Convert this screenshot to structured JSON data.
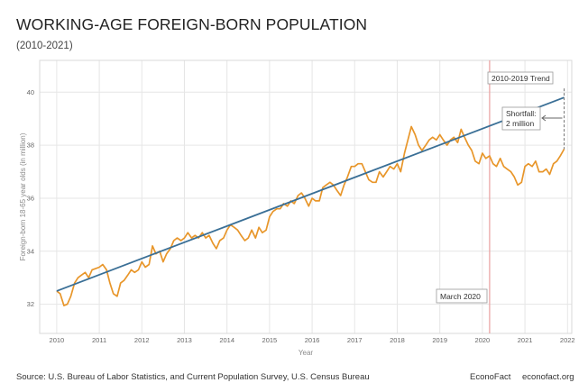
{
  "header": {
    "title": "WORKING-AGE FOREIGN-BORN POPULATION",
    "subtitle": "(2010-2021)"
  },
  "footer": {
    "source": "Source: U.S. Bureau of Labor Statistics, and Current Population Survey, U.S. Census Bureau",
    "brand": "EconoFact",
    "site": "econofact.org"
  },
  "colors": {
    "series": "#e8962a",
    "trend": "#3a6f96",
    "vline": "#e8a0a0",
    "grid": "#e6e6e6"
  },
  "chart_data": {
    "type": "line",
    "xlabel": "Year",
    "ylabel": "Foreign-born 18-65 year olds (in million)",
    "xlim": [
      2009.6,
      2022.1
    ],
    "ylim": [
      30.9,
      41.2
    ],
    "x_ticks": [
      "2010",
      "2011",
      "2012",
      "2013",
      "2014",
      "2015",
      "2016",
      "2017",
      "2018",
      "2019",
      "2020",
      "2021",
      "2022"
    ],
    "y_ticks": [
      "32",
      "34",
      "36",
      "38",
      "40"
    ],
    "grid": true,
    "series": [
      {
        "values": [
          [
            2010.0,
            32.5
          ],
          [
            2010.08,
            32.4
          ],
          [
            2010.17,
            31.95
          ],
          [
            2010.25,
            32.0
          ],
          [
            2010.33,
            32.3
          ],
          [
            2010.42,
            32.8
          ],
          [
            2010.5,
            33.0
          ],
          [
            2010.58,
            33.1
          ],
          [
            2010.67,
            33.2
          ],
          [
            2010.75,
            33.0
          ],
          [
            2010.83,
            33.3
          ],
          [
            2010.92,
            33.35
          ],
          [
            2011.0,
            33.4
          ],
          [
            2011.08,
            33.5
          ],
          [
            2011.17,
            33.3
          ],
          [
            2011.25,
            32.8
          ],
          [
            2011.33,
            32.4
          ],
          [
            2011.42,
            32.3
          ],
          [
            2011.5,
            32.8
          ],
          [
            2011.58,
            32.9
          ],
          [
            2011.67,
            33.1
          ],
          [
            2011.75,
            33.3
          ],
          [
            2011.83,
            33.2
          ],
          [
            2011.92,
            33.3
          ],
          [
            2012.0,
            33.6
          ],
          [
            2012.08,
            33.4
          ],
          [
            2012.17,
            33.5
          ],
          [
            2012.25,
            34.2
          ],
          [
            2012.33,
            33.9
          ],
          [
            2012.42,
            34.0
          ],
          [
            2012.5,
            33.6
          ],
          [
            2012.58,
            33.9
          ],
          [
            2012.67,
            34.1
          ],
          [
            2012.75,
            34.4
          ],
          [
            2012.83,
            34.5
          ],
          [
            2012.92,
            34.4
          ],
          [
            2013.0,
            34.5
          ],
          [
            2013.08,
            34.7
          ],
          [
            2013.17,
            34.5
          ],
          [
            2013.25,
            34.6
          ],
          [
            2013.33,
            34.5
          ],
          [
            2013.42,
            34.7
          ],
          [
            2013.5,
            34.5
          ],
          [
            2013.58,
            34.6
          ],
          [
            2013.67,
            34.3
          ],
          [
            2013.75,
            34.1
          ],
          [
            2013.83,
            34.4
          ],
          [
            2013.92,
            34.5
          ],
          [
            2014.0,
            34.8
          ],
          [
            2014.08,
            35.0
          ],
          [
            2014.17,
            34.9
          ],
          [
            2014.25,
            34.8
          ],
          [
            2014.33,
            34.6
          ],
          [
            2014.42,
            34.4
          ],
          [
            2014.5,
            34.5
          ],
          [
            2014.58,
            34.8
          ],
          [
            2014.67,
            34.5
          ],
          [
            2014.75,
            34.9
          ],
          [
            2014.83,
            34.7
          ],
          [
            2014.92,
            34.8
          ],
          [
            2015.0,
            35.3
          ],
          [
            2015.08,
            35.5
          ],
          [
            2015.17,
            35.6
          ],
          [
            2015.25,
            35.6
          ],
          [
            2015.33,
            35.8
          ],
          [
            2015.42,
            35.7
          ],
          [
            2015.5,
            35.9
          ],
          [
            2015.58,
            35.8
          ],
          [
            2015.67,
            36.1
          ],
          [
            2015.75,
            36.2
          ],
          [
            2015.83,
            36.0
          ],
          [
            2015.92,
            35.7
          ],
          [
            2016.0,
            36.0
          ],
          [
            2016.08,
            35.9
          ],
          [
            2016.17,
            35.9
          ],
          [
            2016.25,
            36.4
          ],
          [
            2016.33,
            36.5
          ],
          [
            2016.42,
            36.6
          ],
          [
            2016.5,
            36.5
          ],
          [
            2016.58,
            36.3
          ],
          [
            2016.67,
            36.1
          ],
          [
            2016.75,
            36.5
          ],
          [
            2016.83,
            36.8
          ],
          [
            2016.92,
            37.2
          ],
          [
            2017.0,
            37.2
          ],
          [
            2017.08,
            37.3
          ],
          [
            2017.17,
            37.3
          ],
          [
            2017.25,
            37.0
          ],
          [
            2017.33,
            36.7
          ],
          [
            2017.42,
            36.6
          ],
          [
            2017.5,
            36.6
          ],
          [
            2017.58,
            37.0
          ],
          [
            2017.67,
            36.8
          ],
          [
            2017.75,
            37.0
          ],
          [
            2017.83,
            37.2
          ],
          [
            2017.92,
            37.1
          ],
          [
            2018.0,
            37.3
          ],
          [
            2018.08,
            37.0
          ],
          [
            2018.17,
            37.7
          ],
          [
            2018.25,
            38.2
          ],
          [
            2018.33,
            38.7
          ],
          [
            2018.42,
            38.4
          ],
          [
            2018.5,
            38.0
          ],
          [
            2018.58,
            37.8
          ],
          [
            2018.67,
            38.0
          ],
          [
            2018.75,
            38.2
          ],
          [
            2018.83,
            38.3
          ],
          [
            2018.92,
            38.2
          ],
          [
            2019.0,
            38.4
          ],
          [
            2019.08,
            38.2
          ],
          [
            2019.17,
            38.0
          ],
          [
            2019.25,
            38.2
          ],
          [
            2019.33,
            38.3
          ],
          [
            2019.42,
            38.1
          ],
          [
            2019.5,
            38.6
          ],
          [
            2019.58,
            38.3
          ],
          [
            2019.67,
            38.0
          ],
          [
            2019.75,
            37.8
          ],
          [
            2019.83,
            37.4
          ],
          [
            2019.92,
            37.3
          ],
          [
            2020.0,
            37.7
          ],
          [
            2020.08,
            37.5
          ],
          [
            2020.17,
            37.6
          ],
          [
            2020.25,
            37.3
          ],
          [
            2020.33,
            37.2
          ],
          [
            2020.42,
            37.5
          ],
          [
            2020.5,
            37.2
          ],
          [
            2020.58,
            37.1
          ],
          [
            2020.67,
            37.0
          ],
          [
            2020.75,
            36.8
          ],
          [
            2020.83,
            36.5
          ],
          [
            2020.92,
            36.6
          ],
          [
            2021.0,
            37.2
          ],
          [
            2021.08,
            37.3
          ],
          [
            2021.17,
            37.2
          ],
          [
            2021.25,
            37.4
          ],
          [
            2021.33,
            37.0
          ],
          [
            2021.42,
            37.0
          ],
          [
            2021.5,
            37.1
          ],
          [
            2021.58,
            36.9
          ],
          [
            2021.67,
            37.3
          ],
          [
            2021.75,
            37.4
          ],
          [
            2021.83,
            37.6
          ],
          [
            2021.92,
            37.85
          ]
        ]
      }
    ],
    "trend": {
      "label": "2010-2019 Trend",
      "from": [
        2010.0,
        32.5
      ],
      "to": [
        2021.92,
        39.8
      ]
    },
    "event": {
      "x": 2020.17,
      "label": "March 2020"
    },
    "shortfall": {
      "label_lines": [
        "Shortfall:",
        "2 million"
      ],
      "x": 2021.92,
      "y_top": 39.8,
      "y_bottom": 37.85
    }
  }
}
